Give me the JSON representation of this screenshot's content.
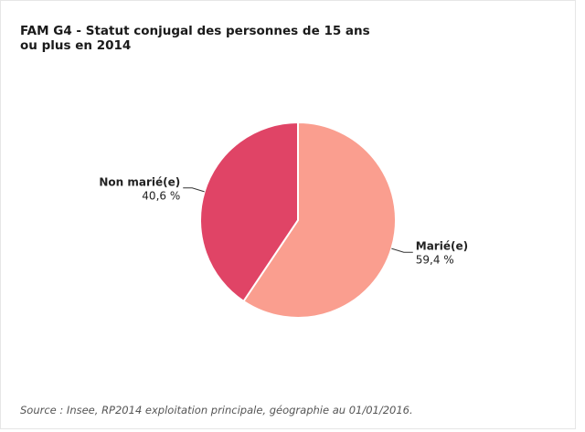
{
  "chart_data": {
    "type": "pie",
    "title": "FAM G4 - Statut conjugal des personnes de 15 ans ou plus en 2014",
    "categories": [
      "Marié(e)",
      "Non marié(e)"
    ],
    "values": [
      59.4,
      40.6
    ],
    "value_labels": [
      "59,4 %",
      "40,6 %"
    ],
    "colors": [
      "#fa9e8f",
      "#e04466"
    ],
    "source": "Source : Insee, RP2014 exploitation principale, géographie au 01/01/2016."
  }
}
